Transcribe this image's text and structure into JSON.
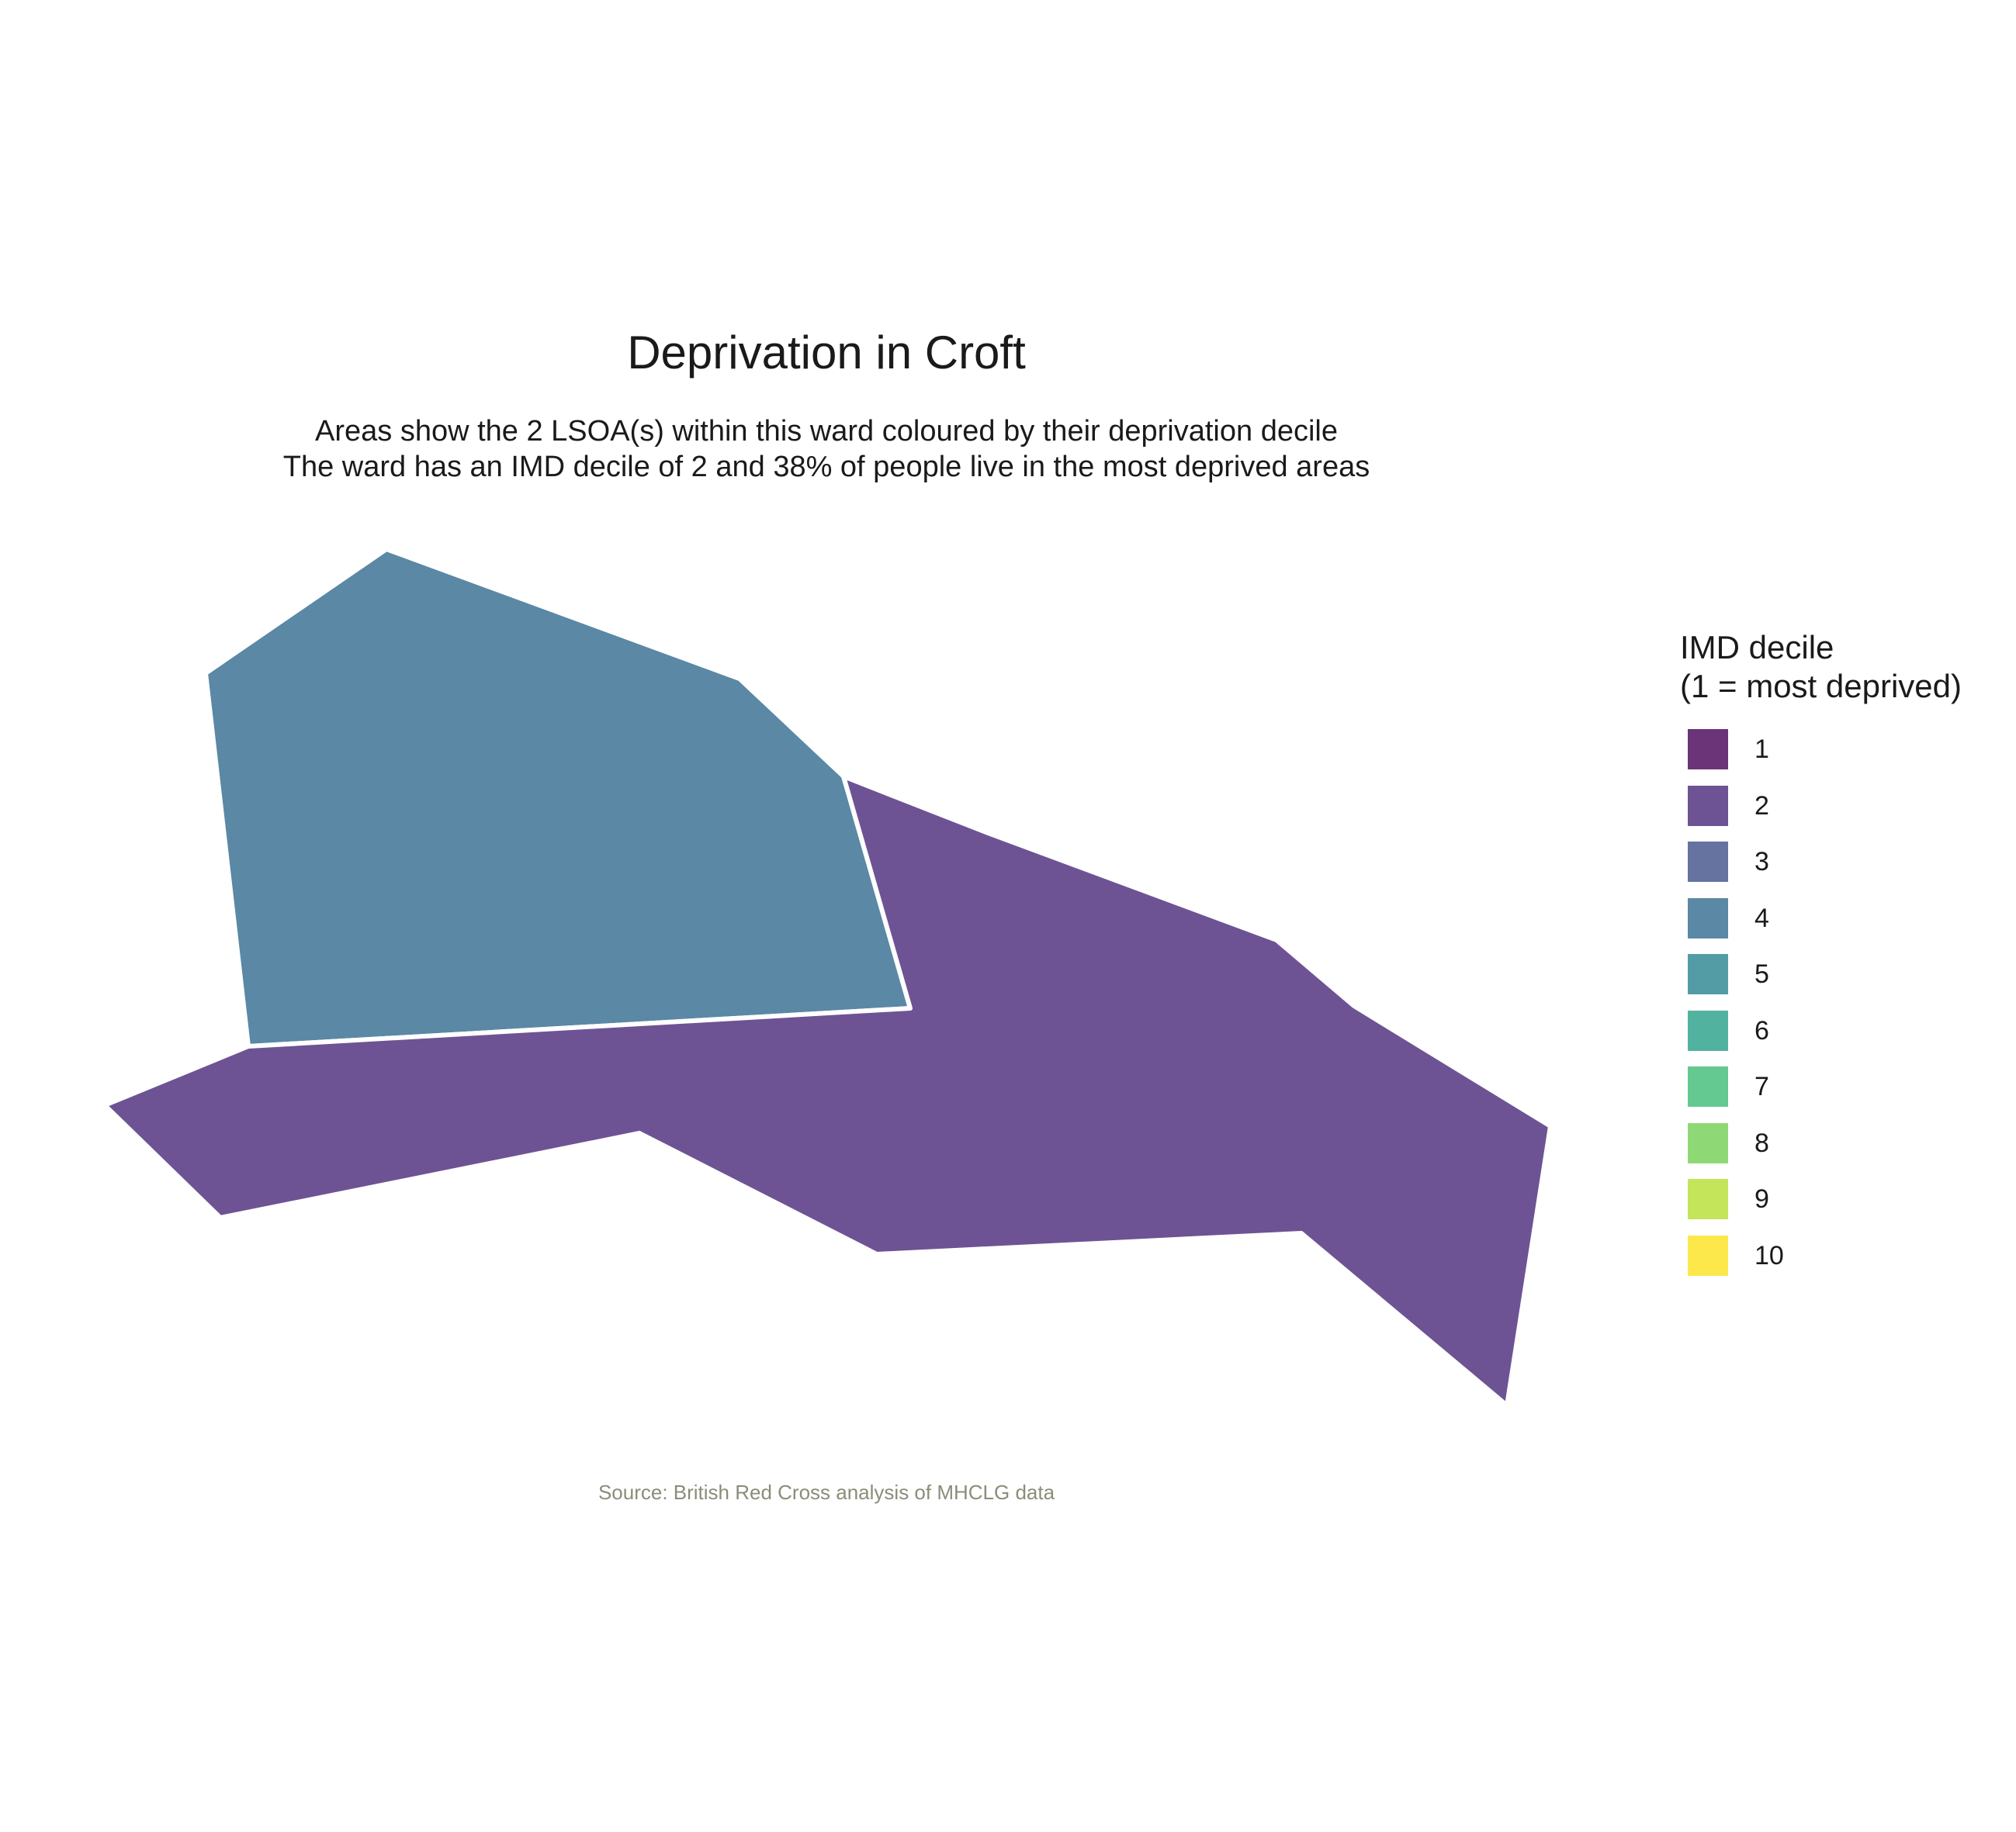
{
  "chart_data": {
    "type": "choropleth",
    "title": "Deprivation in Croft",
    "subtitle_lines": [
      "Areas show the 2 LSOA(s) within this ward coloured by their deprivation decile",
      "The ward has an IMD decile of 2 and 38% of people live in the most deprived areas"
    ],
    "caption": "Source: British Red Cross analysis of MHCLG data",
    "legend": {
      "title_lines": [
        "IMD decile",
        "(1 = most deprived)"
      ],
      "placement": "right",
      "items": [
        {
          "label": "1",
          "color": "#6b3478"
        },
        {
          "label": "2",
          "color": "#6d5394"
        },
        {
          "label": "3",
          "color": "#6673a0"
        },
        {
          "label": "4",
          "color": "#5a88a5"
        },
        {
          "label": "5",
          "color": "#539ca6"
        },
        {
          "label": "6",
          "color": "#52b2a0"
        },
        {
          "label": "7",
          "color": "#64c891"
        },
        {
          "label": "8",
          "color": "#8fd876"
        },
        {
          "label": "9",
          "color": "#c4e45a"
        },
        {
          "label": "10",
          "color": "#fde84c"
        }
      ]
    },
    "areas": [
      {
        "decile": 4,
        "color": "#5a88a5"
      },
      {
        "decile": 2,
        "color": "#6d5394"
      }
    ]
  }
}
